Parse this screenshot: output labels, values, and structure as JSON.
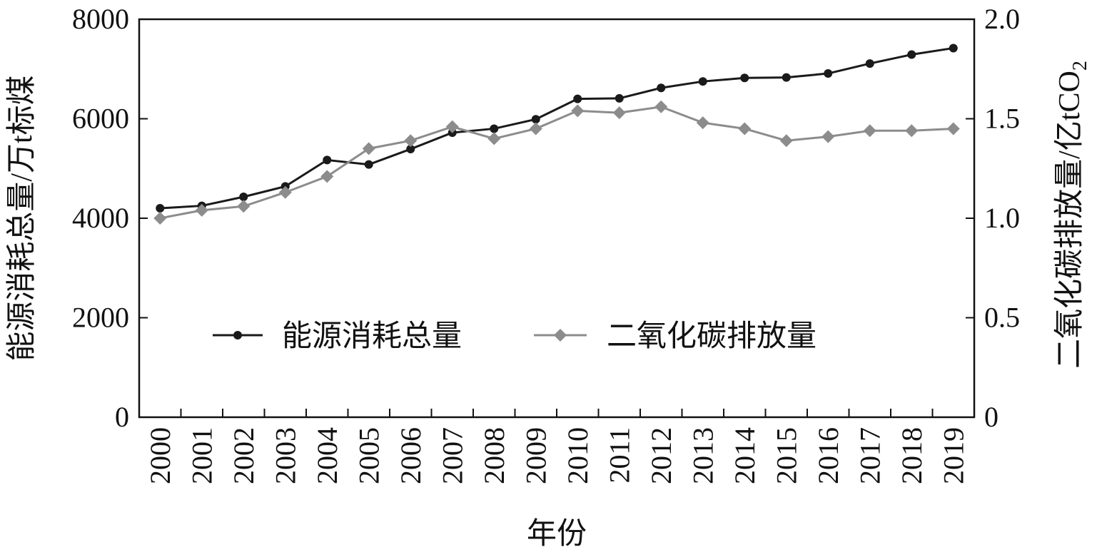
{
  "chart_data": {
    "type": "line",
    "xlabel": "年份",
    "ylabel_left": "能源消耗总量/万t标煤",
    "ylabel_right_main": "二氧化碳排放量/亿tCO",
    "ylabel_right_sub": "2",
    "x": [
      "2000",
      "2001",
      "2002",
      "2003",
      "2004",
      "2005",
      "2006",
      "2007",
      "2008",
      "2009",
      "2010",
      "2011",
      "2012",
      "2013",
      "2014",
      "2015",
      "2016",
      "2017",
      "2018",
      "2019"
    ],
    "y_left_lim": [
      0,
      8000
    ],
    "y_right_lim": [
      0,
      2.0
    ],
    "y_left_ticks": [
      "0",
      "2000",
      "4000",
      "6000",
      "8000"
    ],
    "y_right_ticks": [
      "0",
      "0.5",
      "1.0",
      "1.5",
      "2.0"
    ],
    "legend_position": "inside-lower-center",
    "grid": false,
    "series": [
      {
        "name": "能源消耗总量",
        "axis": "left",
        "color": "#1a1a1a",
        "marker": "circle",
        "values": [
          4200,
          4250,
          4430,
          4640,
          5170,
          5080,
          5390,
          5720,
          5800,
          5990,
          6400,
          6410,
          6620,
          6750,
          6820,
          6830,
          6910,
          7110,
          7290,
          7420
        ]
      },
      {
        "name": "二氧化碳排放量",
        "axis": "right",
        "color": "#8c8c8c",
        "marker": "diamond",
        "values": [
          1.0,
          1.04,
          1.06,
          1.13,
          1.21,
          1.35,
          1.39,
          1.46,
          1.4,
          1.45,
          1.54,
          1.53,
          1.56,
          1.48,
          1.45,
          1.39,
          1.41,
          1.44,
          1.44,
          1.45
        ]
      }
    ]
  }
}
